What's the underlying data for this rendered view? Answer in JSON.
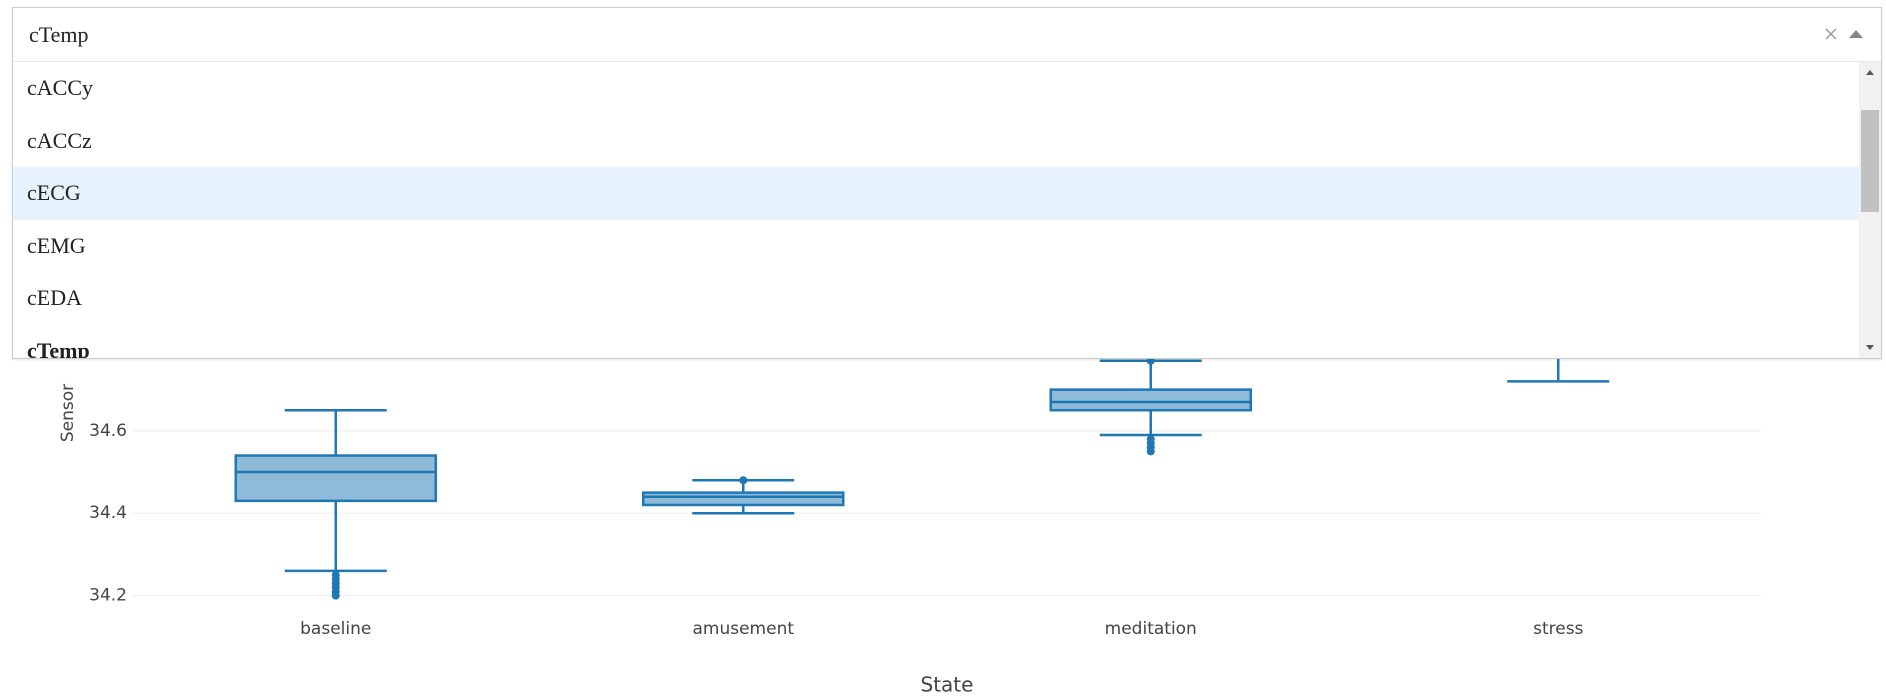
{
  "dropdown": {
    "value": "cTemp",
    "options": [
      "cACCy",
      "cACCz",
      "cECG",
      "cEMG",
      "cEDA",
      "cTemp"
    ],
    "highlighted_index": 2
  },
  "chart_data": {
    "type": "box",
    "x_label": "State",
    "y_label": "Sensor",
    "color": "#1f77b4",
    "categories": [
      "baseline",
      "amusement",
      "meditation",
      "stress"
    ],
    "boxes": [
      {
        "low": 34.26,
        "q1": 34.43,
        "median": 34.5,
        "q3": 34.54,
        "high": 34.65,
        "outliers": [
          34.25,
          34.24,
          34.23,
          34.22,
          34.21,
          34.2
        ]
      },
      {
        "low": 34.4,
        "q1": 34.42,
        "median": 34.44,
        "q3": 34.45,
        "high": 34.48,
        "outliers": [
          34.48
        ]
      },
      {
        "low": 34.59,
        "q1": 34.65,
        "median": 34.67,
        "q3": 34.7,
        "high": 34.77,
        "outliers": [
          34.58,
          34.57,
          34.56,
          34.55,
          34.77
        ]
      },
      {
        "low": 34.72,
        "q1": null,
        "median": null,
        "q3": null,
        "high": null,
        "outliers": []
      }
    ],
    "ylim": [
      34.17,
      35.0
    ],
    "yticks": [
      34.2,
      34.4,
      34.6
    ],
    "grid": true
  }
}
